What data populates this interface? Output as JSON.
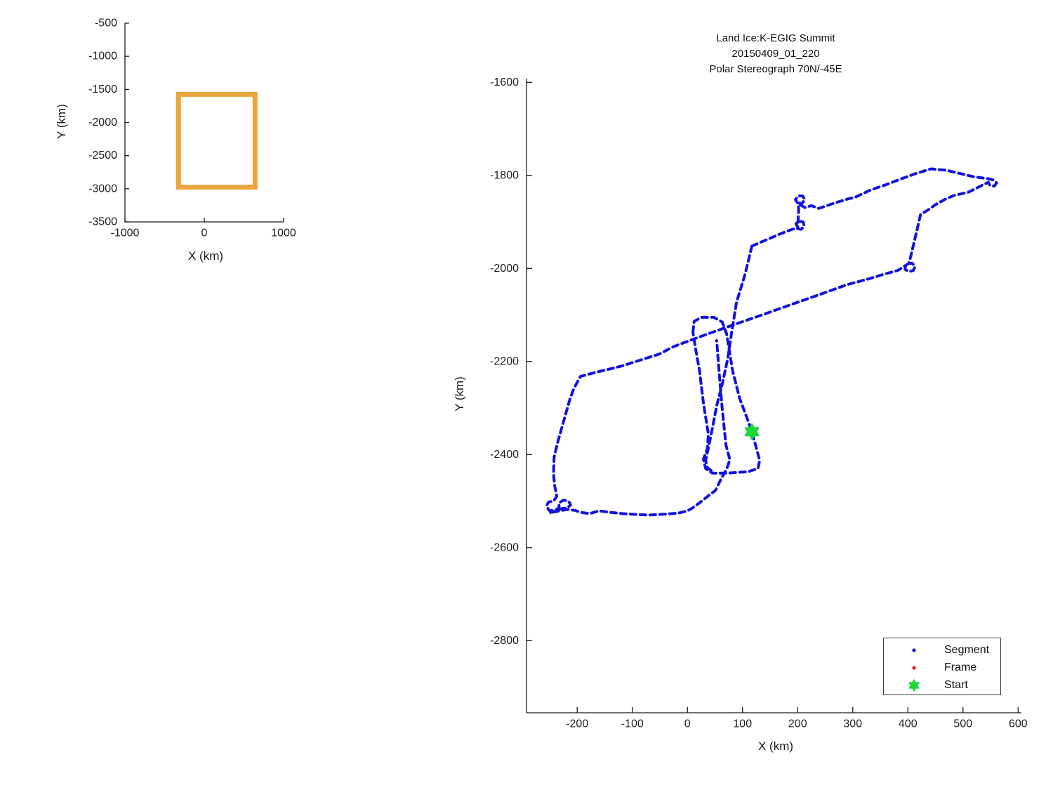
{
  "figure": {
    "background": "#ffffff",
    "axis_color": "#1a1a1a",
    "tick_label_color": "#1f1f1f"
  },
  "colors": {
    "segment_blue": "#1212df",
    "frame_red": "#dd2222",
    "start_green": "#1ed53a",
    "bounds_orange": "#e9a63c"
  },
  "chart_data": [
    {
      "id": "overview",
      "type": "line",
      "title": "",
      "xlabel": "X (km)",
      "ylabel": "Y (km)",
      "xlim": [
        -1000,
        1000
      ],
      "ylim": [
        -3500,
        -500
      ],
      "xticks": [
        -1000,
        0,
        1000
      ],
      "xtick_labels": [
        "-1000",
        "0",
        "1000"
      ],
      "yticks": [
        -500,
        -1000,
        -1500,
        -2000,
        -2500,
        -3000,
        -3500
      ],
      "ytick_labels": [
        "-500",
        "-1000",
        "-1500",
        "-2000",
        "-2500",
        "-3000",
        "-3500"
      ],
      "grid": false,
      "series": [
        {
          "name": "flight-bounds-box",
          "kind": "box",
          "color": "#e9a63c",
          "line_width": 7,
          "rect": {
            "x0": -325,
            "x1": 640,
            "y0": -2975,
            "y1": -1575
          }
        }
      ]
    },
    {
      "id": "flight-track",
      "type": "line",
      "title_lines": [
        "Land Ice:K-EGIG Summit",
        "20150409_01_220",
        "Polar Stereograph 70N/-45E"
      ],
      "xlabel": "X (km)",
      "ylabel": "Y (km)",
      "xlim": [
        -292,
        606
      ],
      "ylim": [
        -2955,
        -1592
      ],
      "xticks": [
        -200,
        -100,
        0,
        100,
        200,
        300,
        400,
        500,
        600
      ],
      "xtick_labels": [
        "-200",
        "-100",
        "0",
        "100",
        "200",
        "300",
        "400",
        "500",
        "600"
      ],
      "yticks": [
        -1600,
        -1800,
        -2000,
        -2200,
        -2400,
        -2600,
        -2800
      ],
      "ytick_labels": [
        "-1600",
        "-1800",
        "-2000",
        "-2200",
        "-2400",
        "-2600",
        "-2800"
      ],
      "grid": false,
      "legend": {
        "position": "lower-right",
        "items": [
          {
            "label": "Segment",
            "marker": "dot",
            "color": "#1212df"
          },
          {
            "label": "Frame",
            "marker": "dot",
            "color": "#dd2222"
          },
          {
            "label": "Start",
            "marker": "hexagram",
            "color": "#1ed53a"
          }
        ]
      },
      "series": [
        {
          "name": "segment-track",
          "kind": "track",
          "color": "#1212df",
          "line_width": 4,
          "dash": "8 6",
          "polylines": [
            [
              [
                117,
                -1952
              ],
              [
                136,
                -1942
              ],
              [
                152,
                -1934
              ],
              [
                166,
                -1927
              ],
              [
                183,
                -1919
              ],
              [
                197,
                -1913
              ],
              [
                206,
                -1916
              ],
              [
                212,
                -1909
              ],
              [
                210,
                -1900
              ],
              [
                202,
                -1898
              ],
              [
                197,
                -1904
              ],
              [
                200,
                -1911
              ],
              [
                201,
                -1893
              ],
              [
                202,
                -1874
              ],
              [
                201,
                -1861
              ],
              [
                196,
                -1852
              ],
              [
                201,
                -1844
              ],
              [
                209,
                -1844
              ],
              [
                213,
                -1852
              ],
              [
                208,
                -1860
              ],
              [
                200,
                -1859
              ],
              [
                206,
                -1864
              ],
              [
                213,
                -1869
              ],
              [
                225,
                -1865
              ],
              [
                238,
                -1871
              ],
              [
                251,
                -1866
              ],
              [
                268,
                -1859
              ],
              [
                290,
                -1851
              ],
              [
                306,
                -1846
              ],
              [
                331,
                -1832
              ],
              [
                360,
                -1820
              ],
              [
                382,
                -1810
              ],
              [
                412,
                -1797
              ],
              [
                442,
                -1786
              ],
              [
                470,
                -1789
              ],
              [
                488,
                -1794
              ],
              [
                520,
                -1803
              ],
              [
                545,
                -1807
              ],
              [
                556,
                -1810
              ],
              [
                561,
                -1816
              ],
              [
                557,
                -1823
              ],
              [
                549,
                -1822
              ],
              [
                546,
                -1815
              ],
              [
                535,
                -1821
              ],
              [
                510,
                -1836
              ],
              [
                484,
                -1843
              ],
              [
                468,
                -1851
              ],
              [
                450,
                -1863
              ],
              [
                437,
                -1874
              ],
              [
                423,
                -1884
              ],
              [
                417,
                -1915
              ],
              [
                411,
                -1945
              ],
              [
                405,
                -1975
              ],
              [
                402,
                -1989
              ],
              [
                408,
                -1989
              ],
              [
                413,
                -1996
              ],
              [
                410,
                -2004
              ],
              [
                402,
                -2007
              ],
              [
                395,
                -2002
              ],
              [
                396,
                -1993
              ],
              [
                402,
                -1989
              ],
              [
                382,
                -2004
              ],
              [
                355,
                -2013
              ],
              [
                330,
                -2022
              ],
              [
                289,
                -2035
              ],
              [
                240,
                -2056
              ],
              [
                187,
                -2078
              ],
              [
                140,
                -2098
              ],
              [
                89,
                -2119
              ],
              [
                29,
                -2144
              ],
              [
                -25,
                -2168
              ],
              [
                -51,
                -2184
              ],
              [
                -120,
                -2210
              ],
              [
                -165,
                -2223
              ],
              [
                -194,
                -2232
              ],
              [
                -206,
                -2258
              ],
              [
                -213,
                -2280
              ],
              [
                -225,
                -2330
              ],
              [
                -236,
                -2376
              ],
              [
                -242,
                -2406
              ],
              [
                -243,
                -2441
              ],
              [
                -241,
                -2466
              ],
              [
                -237,
                -2490
              ],
              [
                -243,
                -2500
              ],
              [
                -252,
                -2502
              ],
              [
                -256,
                -2511
              ],
              [
                -251,
                -2520
              ],
              [
                -241,
                -2521
              ],
              [
                -233,
                -2514
              ],
              [
                -233,
                -2504
              ],
              [
                -225,
                -2498
              ],
              [
                -216,
                -2500
              ],
              [
                -212,
                -2508
              ],
              [
                -218,
                -2515
              ],
              [
                -228,
                -2516
              ],
              [
                -240,
                -2522
              ],
              [
                -250,
                -2525
              ],
              [
                -236,
                -2522
              ],
              [
                -218,
                -2518
              ],
              [
                -204,
                -2520
              ],
              [
                -195,
                -2524
              ],
              [
                -178,
                -2527
              ],
              [
                -160,
                -2521
              ],
              [
                -140,
                -2524
              ],
              [
                -118,
                -2527
              ],
              [
                -90,
                -2529
              ],
              [
                -68,
                -2530
              ],
              [
                -40,
                -2528
              ],
              [
                -17,
                -2526
              ],
              [
                0,
                -2521
              ],
              [
                9,
                -2515
              ],
              [
                25,
                -2501
              ],
              [
                40,
                -2487
              ],
              [
                51,
                -2477
              ],
              [
                60,
                -2455
              ],
              [
                68,
                -2438
              ],
              [
                72,
                -2428
              ],
              [
                77,
                -2411
              ],
              [
                70,
                -2380
              ],
              [
                63,
                -2300
              ],
              [
                58,
                -2230
              ],
              [
                53,
                -2155
              ]
            ],
            [
              [
                10,
                -2137
              ],
              [
                12,
                -2114
              ],
              [
                25,
                -2105
              ],
              [
                48,
                -2105
              ],
              [
                63,
                -2115
              ],
              [
                71,
                -2140
              ],
              [
                82,
                -2220
              ],
              [
                95,
                -2280
              ],
              [
                106,
                -2315
              ],
              [
                117,
                -2351
              ],
              [
                126,
                -2390
              ],
              [
                131,
                -2413
              ],
              [
                128,
                -2430
              ],
              [
                110,
                -2437
              ],
              [
                70,
                -2440
              ],
              [
                45,
                -2440
              ],
              [
                33,
                -2430
              ],
              [
                29,
                -2410
              ],
              [
                36,
                -2388
              ],
              [
                38,
                -2356
              ],
              [
                29,
                -2289
              ],
              [
                22,
                -2220
              ],
              [
                15,
                -2174
              ],
              [
                10,
                -2137
              ]
            ],
            [
              [
                117,
                -1952
              ],
              [
                104,
                -2015
              ],
              [
                89,
                -2073
              ],
              [
                80,
                -2140
              ],
              [
                73,
                -2194
              ],
              [
                63,
                -2250
              ],
              [
                53,
                -2295
              ],
              [
                45,
                -2345
              ],
              [
                38,
                -2386
              ],
              [
                33,
                -2412
              ],
              [
                36,
                -2428
              ],
              [
                45,
                -2436
              ]
            ]
          ]
        },
        {
          "name": "start-marker",
          "kind": "marker",
          "marker": "hexagram",
          "color": "#1ed53a",
          "size": 11,
          "points": [
            [
              117,
              -2351
            ]
          ]
        }
      ]
    }
  ]
}
